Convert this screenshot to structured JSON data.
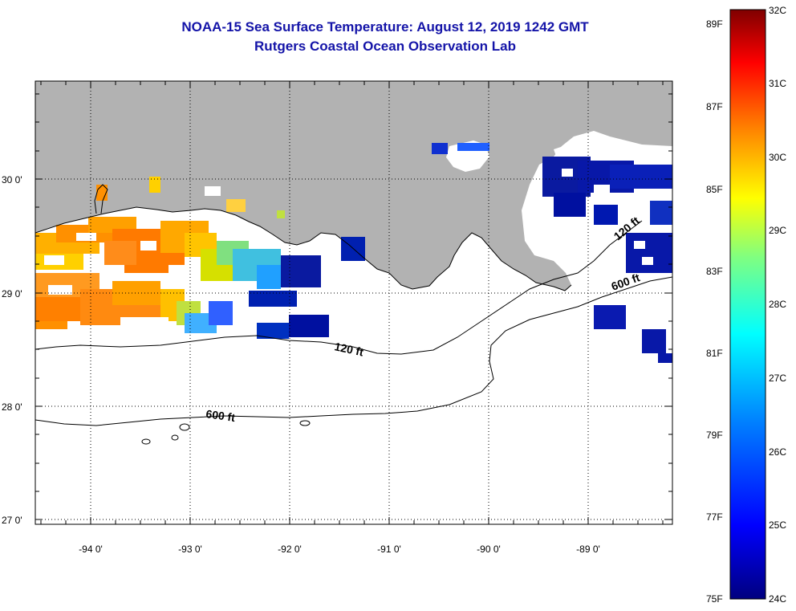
{
  "title": {
    "line1": "NOAA-15 Sea Surface Temperature:  August 12, 2019 1242 GMT",
    "line2": "Rutgers Coastal Ocean Observation Lab"
  },
  "axes": {
    "latitude_labels": [
      "30 0'",
      "29 0'",
      "28 0'",
      "27 0'"
    ],
    "longitude_labels": [
      "-94 0'",
      "-93 0'",
      "-92 0'",
      "-91 0'",
      "-90 0'",
      "-89 0'"
    ]
  },
  "contours": {
    "label_120": "120 ft",
    "label_600_west": "600 ft",
    "label_600_east": "600 ft",
    "label_120_east": "120 ft"
  },
  "colorbar": {
    "fahrenheit": [
      "89F",
      "87F",
      "85F",
      "83F",
      "81F",
      "79F",
      "77F",
      "75F"
    ],
    "celsius": [
      "32C",
      "31C",
      "30C",
      "29C",
      "28C",
      "27C",
      "26C",
      "25C",
      "24C"
    ]
  },
  "colors": {
    "land": "#b2b2b2",
    "title": "#1414a8",
    "scale_stops": [
      "#00007f",
      "#0000ff",
      "#0080ff",
      "#00ffff",
      "#80ff80",
      "#ffff00",
      "#ff8000",
      "#ff0000",
      "#7f0000"
    ]
  }
}
